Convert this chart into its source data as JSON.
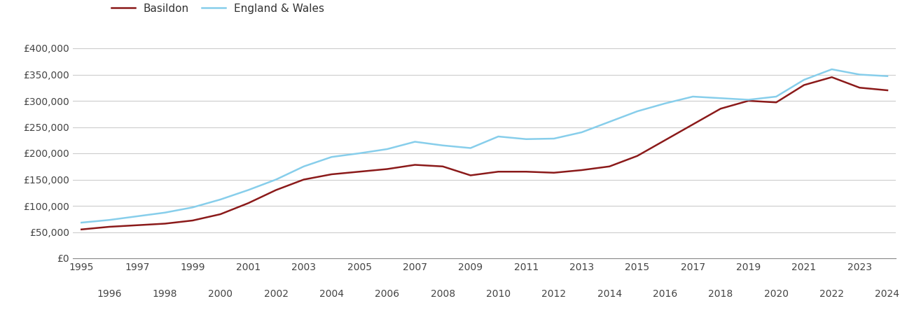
{
  "years": [
    1995,
    1996,
    1997,
    1998,
    1999,
    2000,
    2001,
    2002,
    2003,
    2004,
    2005,
    2006,
    2007,
    2008,
    2009,
    2010,
    2011,
    2012,
    2013,
    2014,
    2015,
    2016,
    2017,
    2018,
    2019,
    2020,
    2021,
    2022,
    2023,
    2024
  ],
  "basildon": [
    55000,
    60000,
    63000,
    66000,
    72000,
    84000,
    105000,
    130000,
    150000,
    160000,
    165000,
    170000,
    178000,
    175000,
    158000,
    165000,
    165000,
    163000,
    168000,
    175000,
    195000,
    225000,
    255000,
    285000,
    300000,
    297000,
    330000,
    345000,
    325000,
    320000
  ],
  "england_wales": [
    68000,
    73000,
    80000,
    87000,
    97000,
    112000,
    130000,
    150000,
    175000,
    193000,
    200000,
    208000,
    222000,
    215000,
    210000,
    232000,
    227000,
    228000,
    240000,
    260000,
    280000,
    295000,
    308000,
    305000,
    302000,
    308000,
    340000,
    360000,
    350000,
    347000
  ],
  "basildon_color": "#8B1A1A",
  "england_wales_color": "#87CEEB",
  "basildon_label": "Basildon",
  "england_wales_label": "England & Wales",
  "ylim": [
    0,
    420000
  ],
  "yticks": [
    0,
    50000,
    100000,
    150000,
    200000,
    250000,
    300000,
    350000,
    400000
  ],
  "ytick_labels": [
    "£0",
    "£50,000",
    "£100,000",
    "£150,000",
    "£200,000",
    "£250,000",
    "£300,000",
    "£350,000",
    "£400,000"
  ],
  "odd_years": [
    1995,
    1997,
    1999,
    2001,
    2003,
    2005,
    2007,
    2009,
    2011,
    2013,
    2015,
    2017,
    2019,
    2021,
    2023
  ],
  "even_years": [
    1996,
    1998,
    2000,
    2002,
    2004,
    2006,
    2008,
    2010,
    2012,
    2014,
    2016,
    2018,
    2020,
    2022,
    2024
  ],
  "background_color": "#ffffff",
  "grid_color": "#cccccc",
  "line_width": 1.8,
  "tick_fontsize": 10,
  "tick_color": "#444444"
}
